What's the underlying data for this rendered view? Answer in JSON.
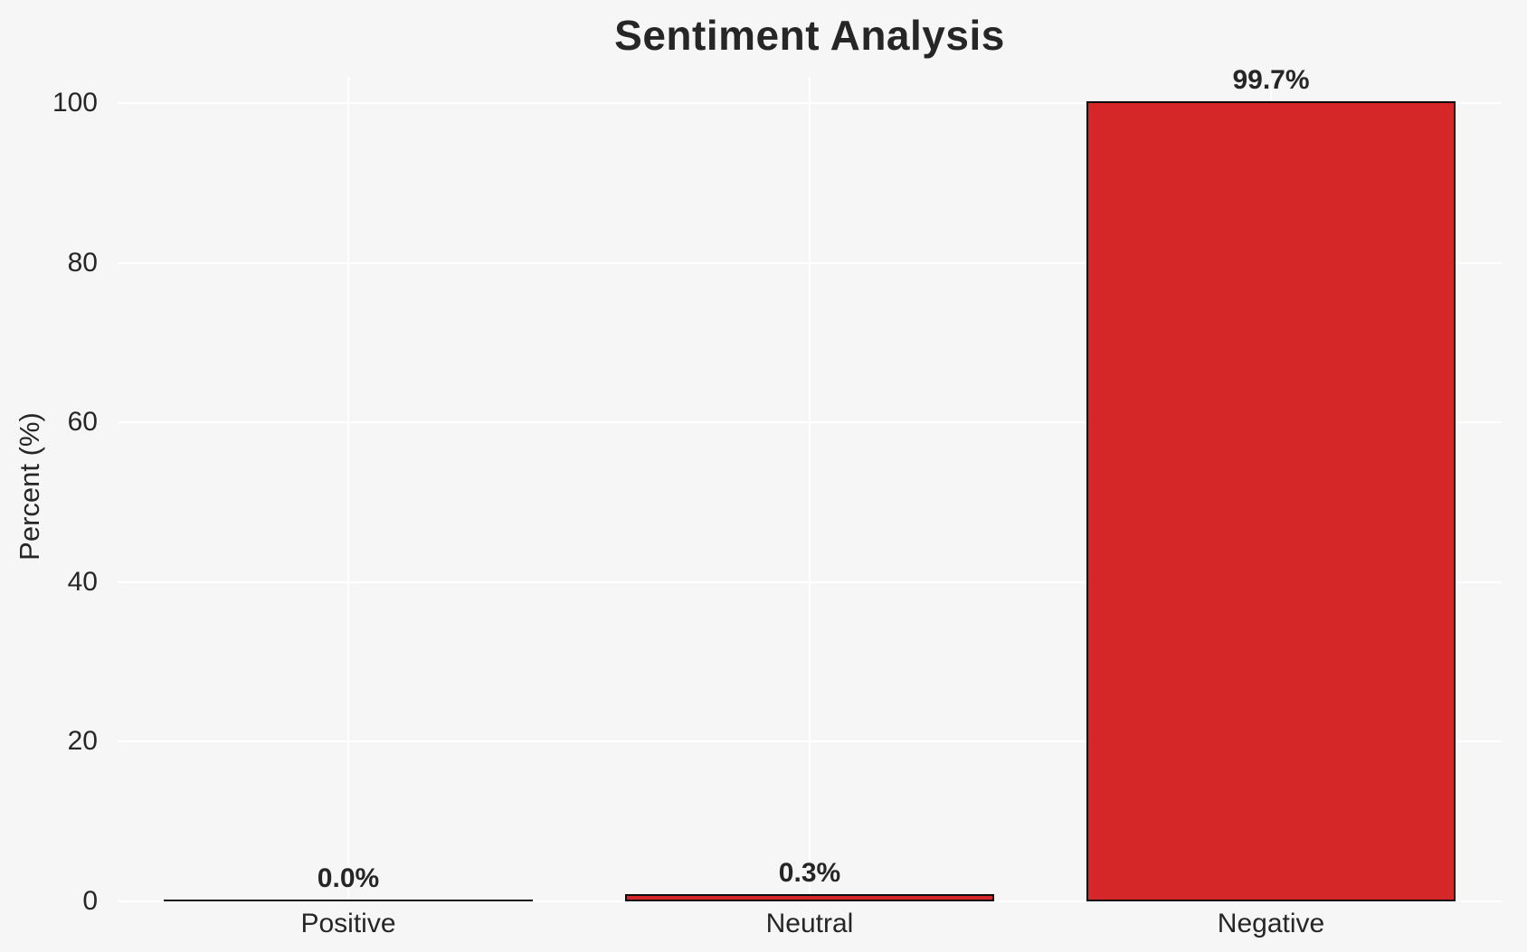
{
  "chart_data": {
    "type": "bar",
    "title": "Sentiment Analysis",
    "xlabel": "",
    "ylabel": "Percent (%)",
    "categories": [
      "Positive",
      "Neutral",
      "Negative"
    ],
    "values": [
      0.0,
      0.3,
      99.7
    ],
    "bar_labels": [
      "0.0%",
      "0.3%",
      "99.7%"
    ],
    "yticks": [
      0,
      20,
      40,
      60,
      80,
      100
    ],
    "ylim": [
      0,
      100
    ],
    "grid": true,
    "legend": "none",
    "colors": {
      "bar_fill": "#d62728",
      "bar_edge": "#0d0d0d",
      "background": "#f6f6f6",
      "gridline": "#ffffff",
      "text": "#262626"
    }
  }
}
